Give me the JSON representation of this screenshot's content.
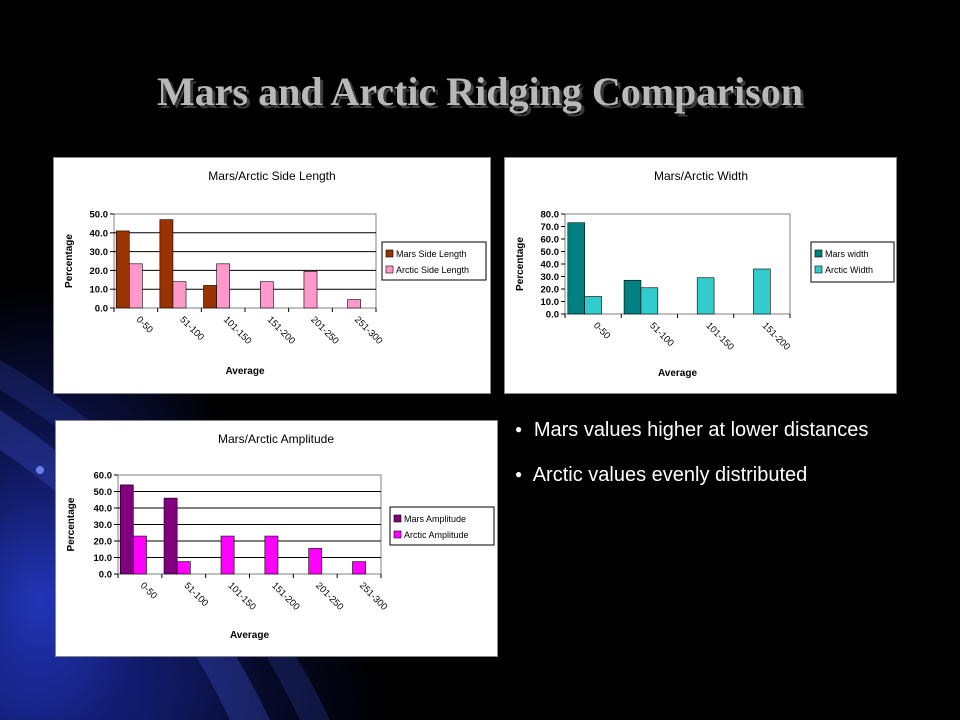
{
  "slide": {
    "title": "Mars and Arctic Ridging Comparison",
    "bullets": [
      "Mars values higher at lower distances",
      "Arctic values evenly distributed"
    ]
  },
  "chart_data": [
    {
      "type": "bar",
      "title": "Mars/Arctic Side Length",
      "xlabel": "Average",
      "ylabel": "Percentage",
      "ylim": [
        0,
        50
      ],
      "yticks": [
        "0.0",
        "10.0",
        "20.0",
        "30.0",
        "40.0",
        "50.0"
      ],
      "categories": [
        "0-50",
        "51-100",
        "101-150",
        "151-200",
        "201-250",
        "251-300"
      ],
      "series": [
        {
          "name": "Mars Side Length",
          "color": "#993300",
          "values": [
            41,
            47,
            12,
            0,
            0,
            0
          ]
        },
        {
          "name": "Arctic Side Length",
          "color": "#ff99cc",
          "values": [
            23.5,
            14,
            23.5,
            14,
            19.5,
            4.5
          ]
        }
      ],
      "grid": true,
      "legend": "right"
    },
    {
      "type": "bar",
      "title": "Mars/Arctic Width",
      "xlabel": "Average",
      "ylabel": "Percentage",
      "ylim": [
        0,
        80
      ],
      "yticks": [
        "0.0",
        "10.0",
        "20.0",
        "30.0",
        "40.0",
        "50.0",
        "60.0",
        "70.0",
        "80.0"
      ],
      "categories": [
        "0-50",
        "51-100",
        "101-150",
        "151-200"
      ],
      "series": [
        {
          "name": "Mars width",
          "color": "#008080",
          "values": [
            73,
            27,
            0,
            0
          ]
        },
        {
          "name": "Arctic Width",
          "color": "#33cccc",
          "values": [
            14,
            21,
            29,
            36
          ]
        }
      ],
      "grid": false,
      "legend": "right"
    },
    {
      "type": "bar",
      "title": "Mars/Arctic Amplitude",
      "xlabel": "Average",
      "ylabel": "Percentage",
      "ylim": [
        0,
        60
      ],
      "yticks": [
        "0.0",
        "10.0",
        "20.0",
        "30.0",
        "40.0",
        "50.0",
        "60.0"
      ],
      "categories": [
        "0-50",
        "51-100",
        "101-150",
        "151-200",
        "201-250",
        "251-300"
      ],
      "series": [
        {
          "name": "Mars Amplitude",
          "color": "#800080",
          "values": [
            54,
            46,
            0,
            0,
            0,
            0
          ]
        },
        {
          "name": "Arctic Amplitude",
          "color": "#ff00ff",
          "values": [
            23,
            7.5,
            23,
            23,
            15.5,
            7.5
          ]
        }
      ],
      "grid": true,
      "legend": "right"
    }
  ]
}
